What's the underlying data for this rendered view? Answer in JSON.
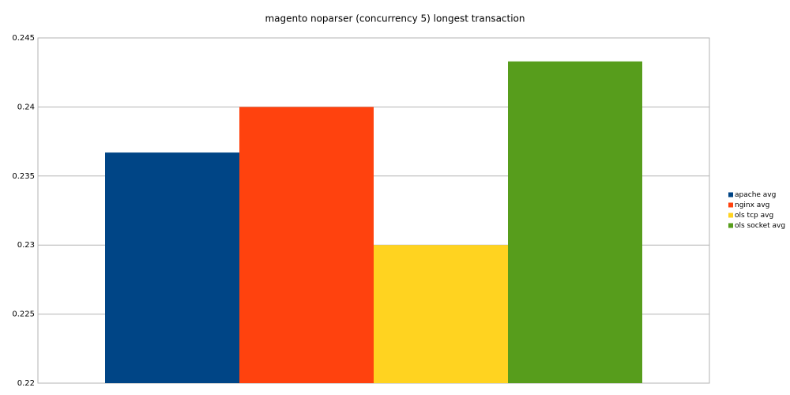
{
  "chart_data": {
    "type": "bar",
    "title": "magento noparser (concurrency 5) longest transaction",
    "categories": [
      null
    ],
    "series": [
      {
        "name": "apache avg",
        "color": "#004586",
        "values": [
          0.2367
        ]
      },
      {
        "name": "nginx avg",
        "color": "#ff420e",
        "values": [
          0.24
        ]
      },
      {
        "name": "ols tcp avg",
        "color": "#ffd320",
        "values": [
          0.23
        ]
      },
      {
        "name": "ols socket avg",
        "color": "#579d1c",
        "values": [
          0.2433
        ]
      }
    ],
    "ylim": [
      0.22,
      0.245
    ],
    "yticks": [
      0.22,
      0.225,
      0.23,
      0.235,
      0.24,
      0.245
    ],
    "grid": true,
    "legend": "right"
  }
}
